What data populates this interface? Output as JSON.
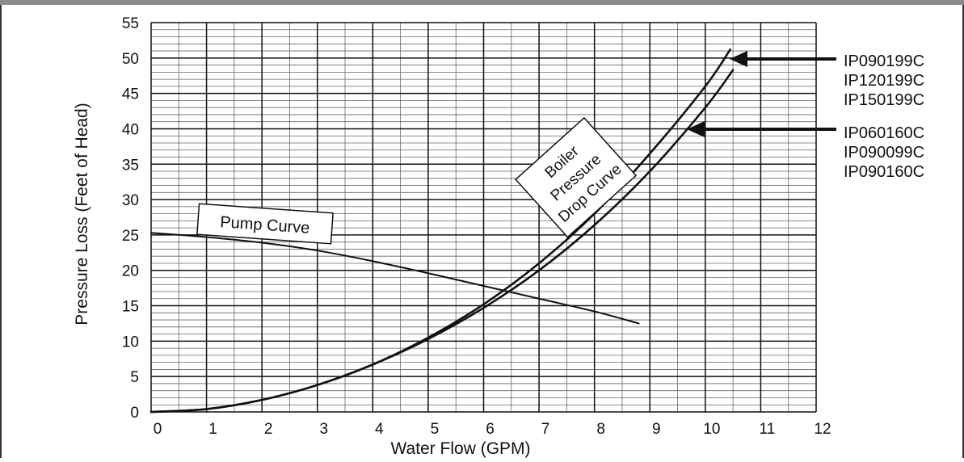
{
  "chart_data": {
    "type": "line",
    "title": "",
    "xlabel": "Water Flow (GPM)",
    "ylabel": "Pressure Loss (Feet of Head)",
    "xlim": [
      0,
      12
    ],
    "ylim": [
      0,
      55
    ],
    "grid": true,
    "x_ticks": [
      "0",
      "1",
      "2",
      "3",
      "4",
      "5",
      "6",
      "7",
      "8",
      "9",
      "10",
      "11",
      "12"
    ],
    "y_ticks": [
      "0",
      "5",
      "10",
      "15",
      "20",
      "25",
      "30",
      "35",
      "40",
      "45",
      "50",
      "55"
    ],
    "series": [
      {
        "id": "pump",
        "name": "Pump Curve",
        "points": [
          [
            0,
            25.3
          ],
          [
            1,
            24.7
          ],
          [
            2,
            23.9
          ],
          [
            3,
            22.8
          ],
          [
            4,
            21.3
          ],
          [
            5,
            19.6
          ],
          [
            6,
            17.8
          ],
          [
            7,
            16.0
          ],
          [
            8,
            14.2
          ],
          [
            8.8,
            12.5
          ]
        ]
      },
      {
        "id": "boiler_high",
        "points": [
          [
            0,
            0
          ],
          [
            1,
            0.4
          ],
          [
            2,
            1.7
          ],
          [
            3,
            3.8
          ],
          [
            4,
            6.7
          ],
          [
            5,
            10.5
          ],
          [
            6,
            15.2
          ],
          [
            7,
            21.0
          ],
          [
            8,
            28.0
          ],
          [
            9,
            36.5
          ],
          [
            10,
            46.0
          ],
          [
            10.45,
            51.2
          ]
        ]
      },
      {
        "id": "boiler_low",
        "points": [
          [
            0,
            0
          ],
          [
            1,
            0.4
          ],
          [
            2,
            1.7
          ],
          [
            3,
            3.8
          ],
          [
            4,
            6.7
          ],
          [
            5,
            10.3
          ],
          [
            6,
            14.7
          ],
          [
            7,
            20.0
          ],
          [
            8,
            26.4
          ],
          [
            9,
            34.0
          ],
          [
            10,
            43.0
          ],
          [
            10.5,
            48.3
          ]
        ]
      }
    ],
    "annotations": {
      "pump_label": "Pump Curve",
      "boiler_label_lines": [
        "Boiler",
        "Pressure",
        "Drop Curve"
      ],
      "models_upper": [
        "IP090199C",
        "IP120199C",
        "IP150199C"
      ],
      "models_lower": [
        "IP060160C",
        "IP090099C",
        "IP090160C"
      ]
    }
  }
}
